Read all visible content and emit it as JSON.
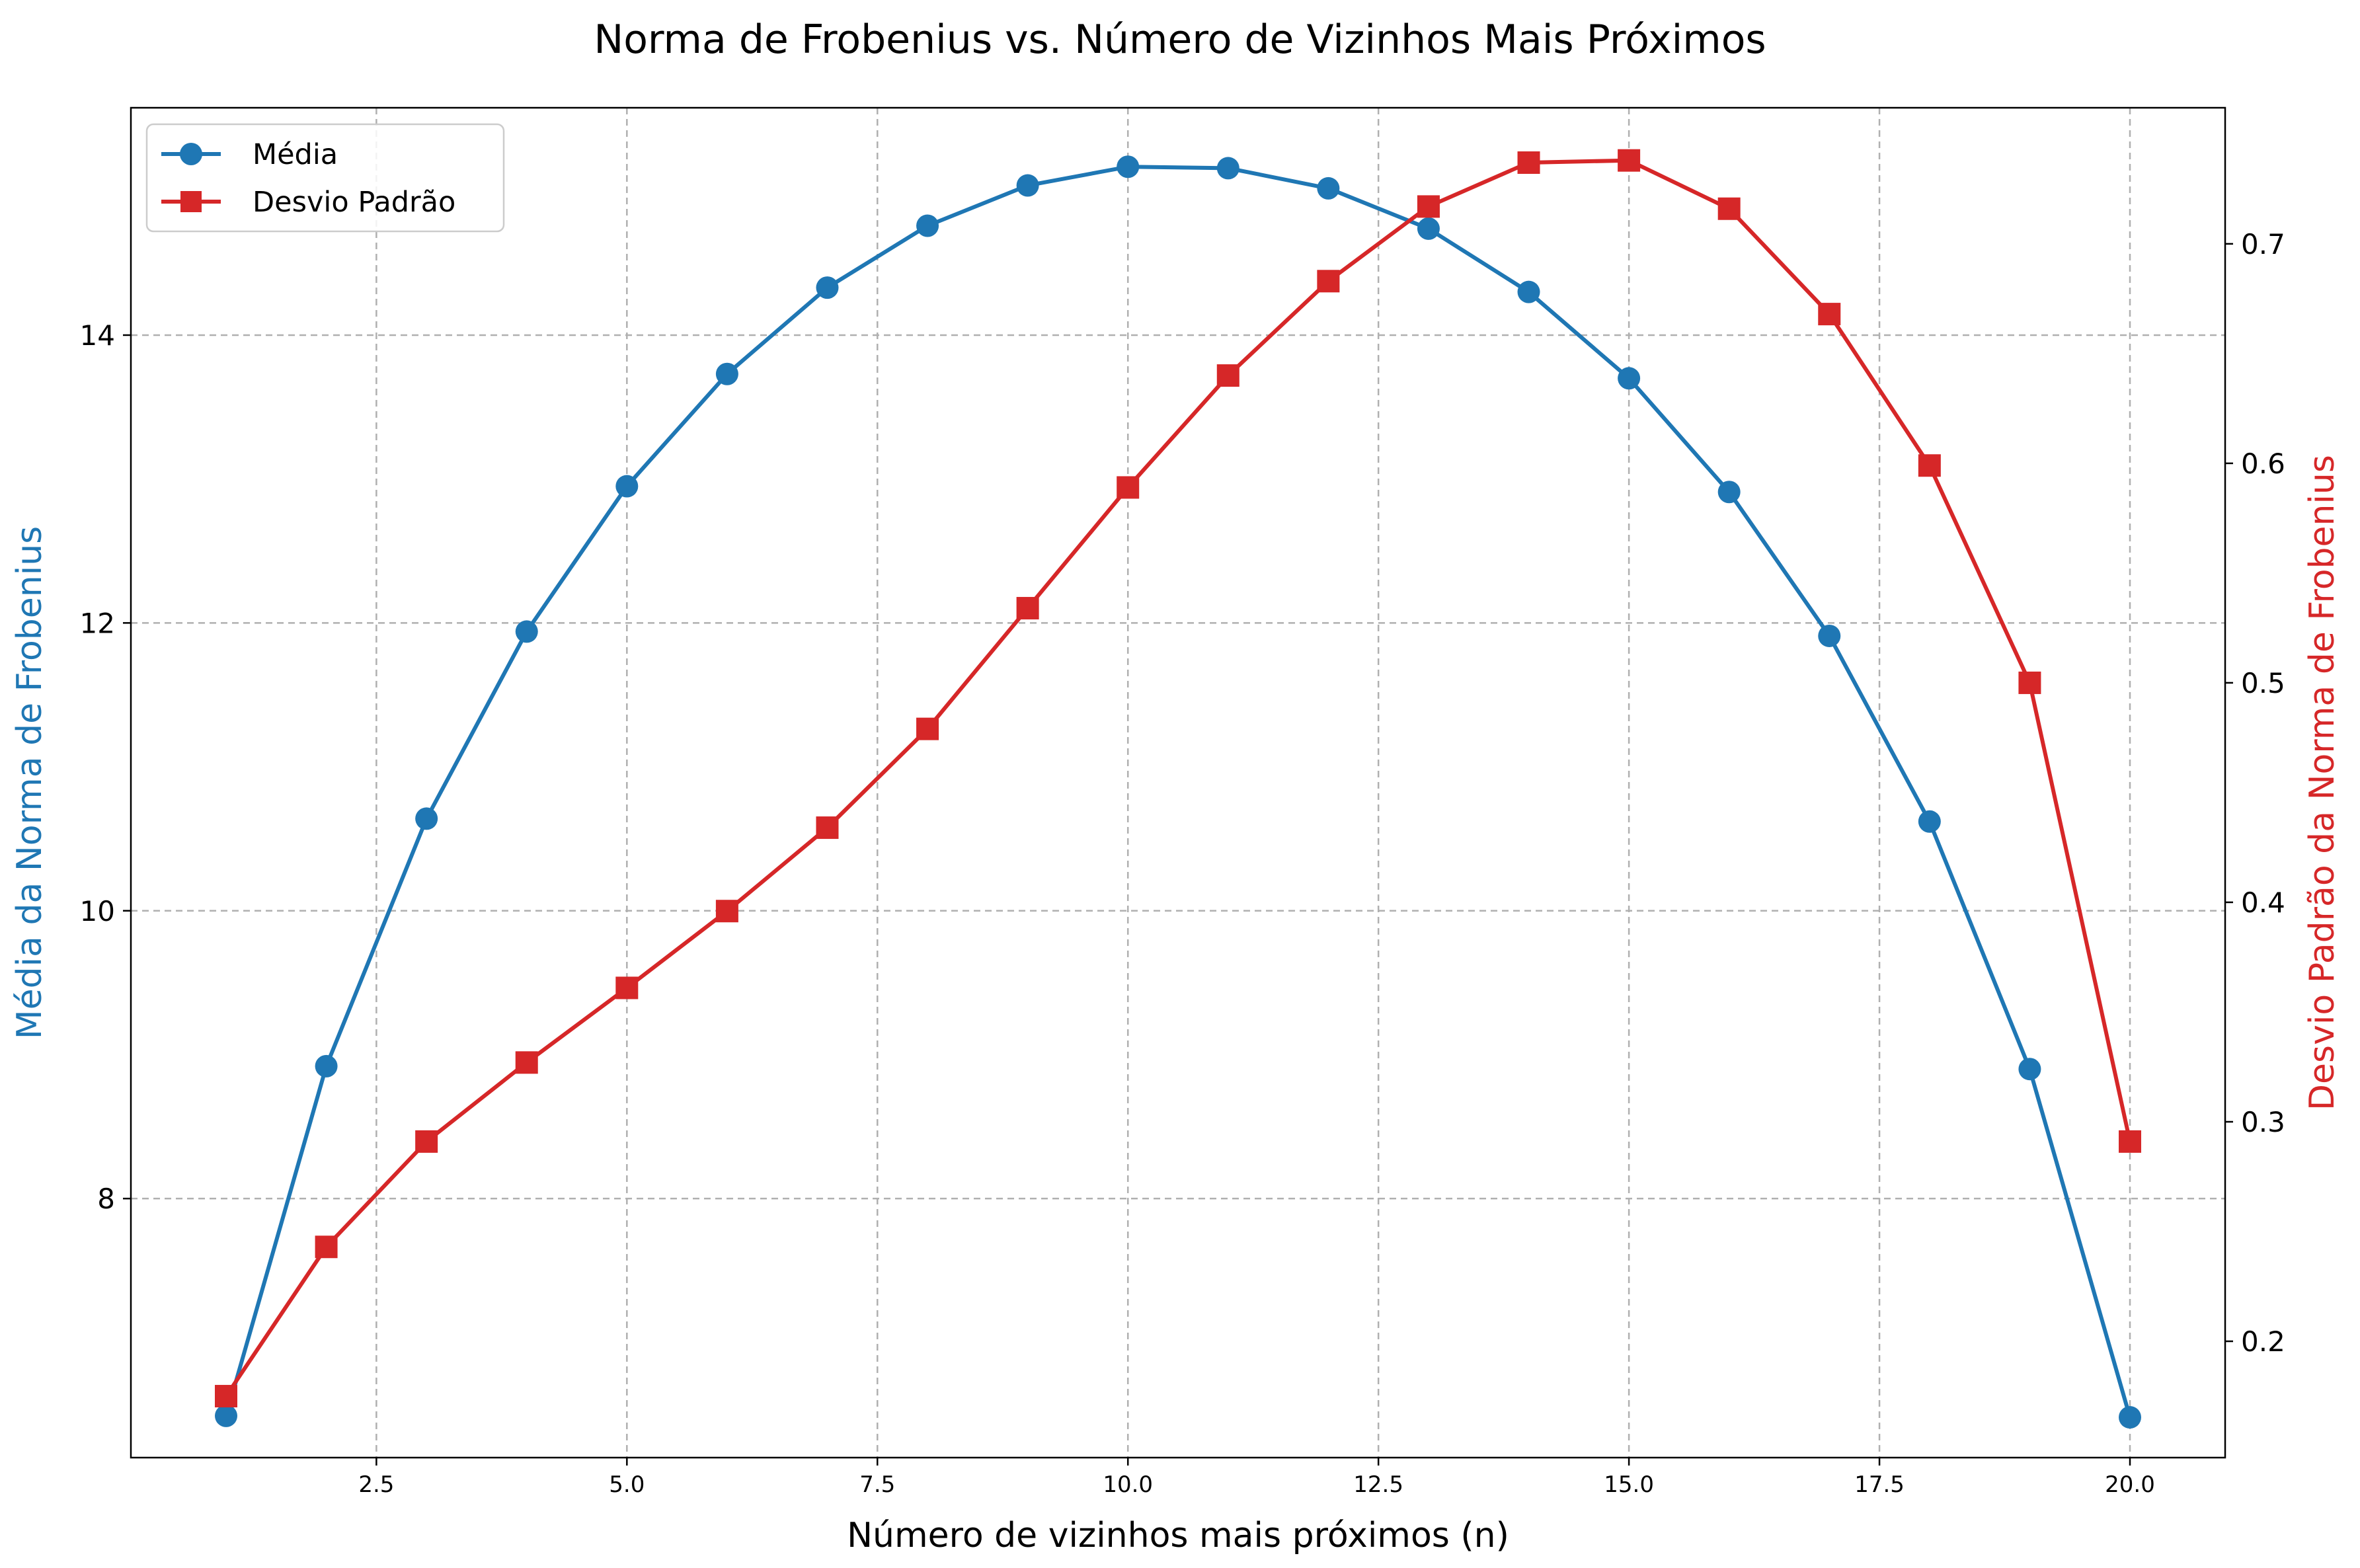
{
  "chart_data": {
    "type": "line",
    "title": "Norma de Frobenius vs. Número de Vizinhos Mais Próximos",
    "xlabel": "Número de vizinhos mais próximos (n)",
    "ylabel_left": "Média da Norma de Frobenius",
    "ylabel_right": "Desvio Padrão da Norma de Frobenius",
    "x": [
      1,
      2,
      3,
      4,
      5,
      6,
      7,
      8,
      9,
      10,
      11,
      12,
      13,
      14,
      15,
      16,
      17,
      18,
      19,
      20
    ],
    "xlim": [
      0.05,
      20.95
    ],
    "ylim_left": [
      6.2,
      15.58
    ],
    "ylim_right": [
      0.147,
      0.762
    ],
    "xticks": [
      "2.5",
      "5.0",
      "7.5",
      "10.0",
      "12.5",
      "15.0",
      "17.5",
      "20.0"
    ],
    "yticks_left": [
      "8",
      "10",
      "12",
      "14"
    ],
    "yticks_right": [
      "0.2",
      "0.3",
      "0.4",
      "0.5",
      "0.6",
      "0.7"
    ],
    "grid": true,
    "legend_position": "top-left",
    "series": [
      {
        "name": "Média",
        "axis": "left",
        "color": "#1f77b4",
        "marker": "circle",
        "values": [
          6.49,
          8.92,
          10.64,
          11.94,
          12.95,
          13.73,
          14.33,
          14.76,
          15.04,
          15.17,
          15.16,
          15.02,
          14.74,
          14.3,
          13.7,
          12.91,
          11.91,
          10.62,
          8.9,
          6.48
        ]
      },
      {
        "name": "Desvio Padrão",
        "axis": "right",
        "color": "#d62728",
        "marker": "square",
        "values": [
          0.175,
          0.243,
          0.291,
          0.327,
          0.361,
          0.396,
          0.434,
          0.479,
          0.534,
          0.589,
          0.64,
          0.683,
          0.717,
          0.737,
          0.738,
          0.716,
          0.668,
          0.599,
          0.5,
          0.291
        ]
      }
    ]
  }
}
